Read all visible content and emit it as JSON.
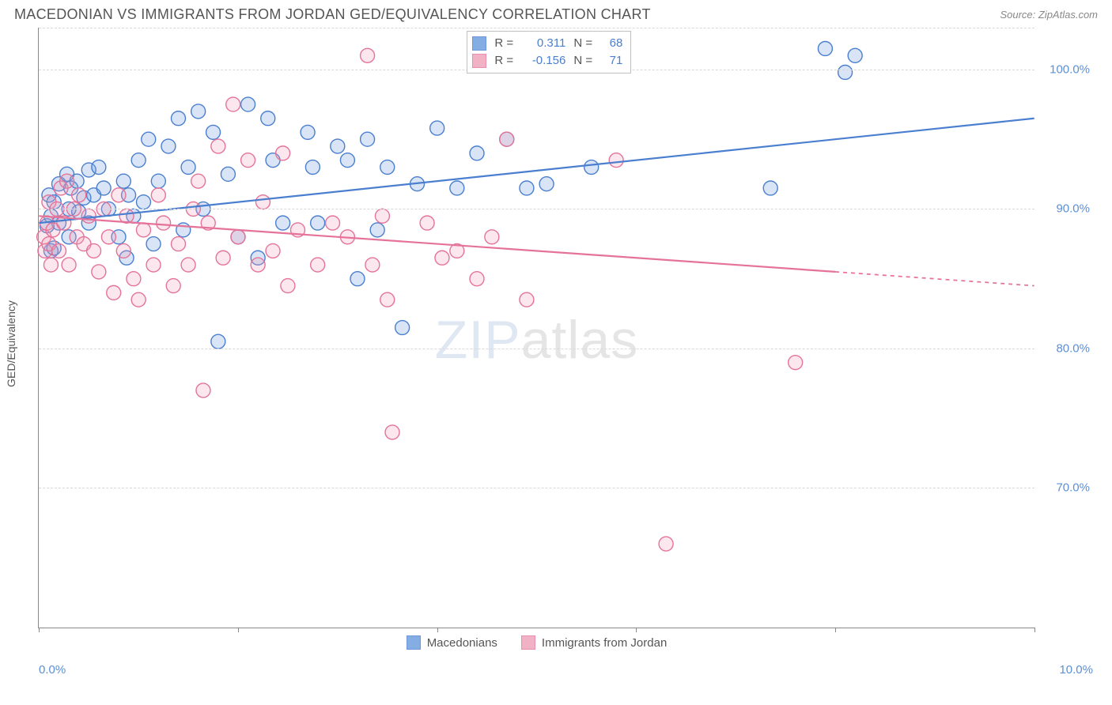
{
  "title": "MACEDONIAN VS IMMIGRANTS FROM JORDAN GED/EQUIVALENCY CORRELATION CHART",
  "source": "Source: ZipAtlas.com",
  "y_axis_label": "GED/Equivalency",
  "watermark_prefix": "ZIP",
  "watermark_suffix": "atlas",
  "chart": {
    "type": "scatter",
    "xlim": [
      0,
      10
    ],
    "ylim": [
      60,
      103
    ],
    "y_ticks": [
      70,
      80,
      90,
      100
    ],
    "y_tick_labels": [
      "70.0%",
      "80.0%",
      "90.0%",
      "100.0%"
    ],
    "x_left_label": "0.0%",
    "x_right_label": "10.0%",
    "x_tick_positions": [
      0,
      2.0,
      4.0,
      6.0,
      8.0,
      10.0
    ],
    "grid_color": "#d8d8d8",
    "axis_color": "#888888",
    "background_color": "#ffffff",
    "marker_radius": 9,
    "marker_stroke_width": 1.4,
    "marker_fill_opacity": 0.25,
    "trend_line_width": 2.2,
    "series": [
      {
        "key": "macedonians",
        "label": "Macedonians",
        "color": "#6699dd",
        "stroke": "#4a7fd0",
        "R": "0.311",
        "N": "68",
        "trend": {
          "x1": 0.0,
          "y1": 89.0,
          "x2": 10.0,
          "y2": 96.5,
          "solid_until_x": 10.0
        },
        "points": [
          {
            "x": 0.08,
            "y": 88.8
          },
          {
            "x": 0.1,
            "y": 91.0
          },
          {
            "x": 0.12,
            "y": 89.5
          },
          {
            "x": 0.12,
            "y": 87.0
          },
          {
            "x": 0.15,
            "y": 90.5
          },
          {
            "x": 0.15,
            "y": 87.2
          },
          {
            "x": 0.2,
            "y": 91.8
          },
          {
            "x": 0.2,
            "y": 89.0
          },
          {
            "x": 0.28,
            "y": 92.5
          },
          {
            "x": 0.3,
            "y": 90.0
          },
          {
            "x": 0.3,
            "y": 88.0
          },
          {
            "x": 0.32,
            "y": 91.5
          },
          {
            "x": 0.38,
            "y": 92.0
          },
          {
            "x": 0.4,
            "y": 89.8
          },
          {
            "x": 0.45,
            "y": 90.8
          },
          {
            "x": 0.5,
            "y": 92.8
          },
          {
            "x": 0.5,
            "y": 89.0
          },
          {
            "x": 0.55,
            "y": 91.0
          },
          {
            "x": 0.6,
            "y": 93.0
          },
          {
            "x": 0.65,
            "y": 91.5
          },
          {
            "x": 0.7,
            "y": 90.0
          },
          {
            "x": 0.8,
            "y": 88.0
          },
          {
            "x": 0.85,
            "y": 92.0
          },
          {
            "x": 0.88,
            "y": 86.5
          },
          {
            "x": 0.9,
            "y": 91.0
          },
          {
            "x": 0.95,
            "y": 89.5
          },
          {
            "x": 1.0,
            "y": 93.5
          },
          {
            "x": 1.05,
            "y": 90.5
          },
          {
            "x": 1.1,
            "y": 95.0
          },
          {
            "x": 1.15,
            "y": 87.5
          },
          {
            "x": 1.2,
            "y": 92.0
          },
          {
            "x": 1.3,
            "y": 94.5
          },
          {
            "x": 1.4,
            "y": 96.5
          },
          {
            "x": 1.45,
            "y": 88.5
          },
          {
            "x": 1.5,
            "y": 93.0
          },
          {
            "x": 1.6,
            "y": 97.0
          },
          {
            "x": 1.65,
            "y": 90.0
          },
          {
            "x": 1.75,
            "y": 95.5
          },
          {
            "x": 1.8,
            "y": 80.5
          },
          {
            "x": 1.9,
            "y": 92.5
          },
          {
            "x": 2.0,
            "y": 88.0
          },
          {
            "x": 2.1,
            "y": 97.5
          },
          {
            "x": 2.2,
            "y": 86.5
          },
          {
            "x": 2.3,
            "y": 96.5
          },
          {
            "x": 2.35,
            "y": 93.5
          },
          {
            "x": 2.45,
            "y": 89.0
          },
          {
            "x": 2.7,
            "y": 95.5
          },
          {
            "x": 2.75,
            "y": 93.0
          },
          {
            "x": 2.8,
            "y": 89.0
          },
          {
            "x": 3.0,
            "y": 94.5
          },
          {
            "x": 3.1,
            "y": 93.5
          },
          {
            "x": 3.2,
            "y": 85.0
          },
          {
            "x": 3.3,
            "y": 95.0
          },
          {
            "x": 3.4,
            "y": 88.5
          },
          {
            "x": 3.5,
            "y": 93.0
          },
          {
            "x": 3.65,
            "y": 81.5
          },
          {
            "x": 3.8,
            "y": 91.8
          },
          {
            "x": 4.0,
            "y": 95.8
          },
          {
            "x": 4.2,
            "y": 91.5
          },
          {
            "x": 4.4,
            "y": 94.0
          },
          {
            "x": 4.7,
            "y": 95.0
          },
          {
            "x": 4.9,
            "y": 91.5
          },
          {
            "x": 5.1,
            "y": 91.8
          },
          {
            "x": 5.55,
            "y": 93.0
          },
          {
            "x": 7.35,
            "y": 91.5
          },
          {
            "x": 7.9,
            "y": 101.5
          },
          {
            "x": 8.1,
            "y": 99.8
          },
          {
            "x": 8.2,
            "y": 101.0
          }
        ]
      },
      {
        "key": "jordan",
        "label": "Immigrants from Jordan",
        "color": "#f0a0b8",
        "stroke": "#e57399",
        "R": "-0.156",
        "N": "71",
        "trend": {
          "x1": 0.0,
          "y1": 89.5,
          "x2": 10.0,
          "y2": 84.5,
          "solid_until_x": 8.0
        },
        "points": [
          {
            "x": 0.05,
            "y": 88.0
          },
          {
            "x": 0.06,
            "y": 87.0
          },
          {
            "x": 0.08,
            "y": 89.0
          },
          {
            "x": 0.1,
            "y": 87.5
          },
          {
            "x": 0.1,
            "y": 90.5
          },
          {
            "x": 0.12,
            "y": 86.0
          },
          {
            "x": 0.14,
            "y": 88.5
          },
          {
            "x": 0.18,
            "y": 90.0
          },
          {
            "x": 0.2,
            "y": 87.0
          },
          {
            "x": 0.22,
            "y": 91.5
          },
          {
            "x": 0.25,
            "y": 89.0
          },
          {
            "x": 0.28,
            "y": 92.0
          },
          {
            "x": 0.3,
            "y": 86.0
          },
          {
            "x": 0.35,
            "y": 90.0
          },
          {
            "x": 0.38,
            "y": 88.0
          },
          {
            "x": 0.4,
            "y": 91.0
          },
          {
            "x": 0.45,
            "y": 87.5
          },
          {
            "x": 0.5,
            "y": 89.5
          },
          {
            "x": 0.55,
            "y": 87.0
          },
          {
            "x": 0.6,
            "y": 85.5
          },
          {
            "x": 0.65,
            "y": 90.0
          },
          {
            "x": 0.7,
            "y": 88.0
          },
          {
            "x": 0.75,
            "y": 84.0
          },
          {
            "x": 0.8,
            "y": 91.0
          },
          {
            "x": 0.85,
            "y": 87.0
          },
          {
            "x": 0.88,
            "y": 89.5
          },
          {
            "x": 0.95,
            "y": 85.0
          },
          {
            "x": 1.0,
            "y": 83.5
          },
          {
            "x": 1.05,
            "y": 88.5
          },
          {
            "x": 1.15,
            "y": 86.0
          },
          {
            "x": 1.2,
            "y": 91.0
          },
          {
            "x": 1.25,
            "y": 89.0
          },
          {
            "x": 1.35,
            "y": 84.5
          },
          {
            "x": 1.4,
            "y": 87.5
          },
          {
            "x": 1.5,
            "y": 86.0
          },
          {
            "x": 1.55,
            "y": 90.0
          },
          {
            "x": 1.6,
            "y": 92.0
          },
          {
            "x": 1.65,
            "y": 77.0
          },
          {
            "x": 1.7,
            "y": 89.0
          },
          {
            "x": 1.8,
            "y": 94.5
          },
          {
            "x": 1.85,
            "y": 86.5
          },
          {
            "x": 1.95,
            "y": 97.5
          },
          {
            "x": 2.0,
            "y": 88.0
          },
          {
            "x": 2.1,
            "y": 93.5
          },
          {
            "x": 2.2,
            "y": 86.0
          },
          {
            "x": 2.25,
            "y": 90.5
          },
          {
            "x": 2.35,
            "y": 87.0
          },
          {
            "x": 2.45,
            "y": 94.0
          },
          {
            "x": 2.5,
            "y": 84.5
          },
          {
            "x": 2.6,
            "y": 88.5
          },
          {
            "x": 2.8,
            "y": 86.0
          },
          {
            "x": 2.95,
            "y": 89.0
          },
          {
            "x": 3.1,
            "y": 88.0
          },
          {
            "x": 3.3,
            "y": 101.0
          },
          {
            "x": 3.35,
            "y": 86.0
          },
          {
            "x": 3.45,
            "y": 89.5
          },
          {
            "x": 3.5,
            "y": 83.5
          },
          {
            "x": 3.55,
            "y": 74.0
          },
          {
            "x": 3.9,
            "y": 89.0
          },
          {
            "x": 4.05,
            "y": 86.5
          },
          {
            "x": 4.2,
            "y": 87.0
          },
          {
            "x": 4.4,
            "y": 85.0
          },
          {
            "x": 4.55,
            "y": 88.0
          },
          {
            "x": 4.7,
            "y": 95.0
          },
          {
            "x": 4.9,
            "y": 83.5
          },
          {
            "x": 5.8,
            "y": 93.5
          },
          {
            "x": 6.3,
            "y": 66.0
          },
          {
            "x": 7.6,
            "y": 79.0
          }
        ]
      }
    ]
  },
  "legend_top": {
    "R_label": "R =",
    "N_label": "N ="
  }
}
